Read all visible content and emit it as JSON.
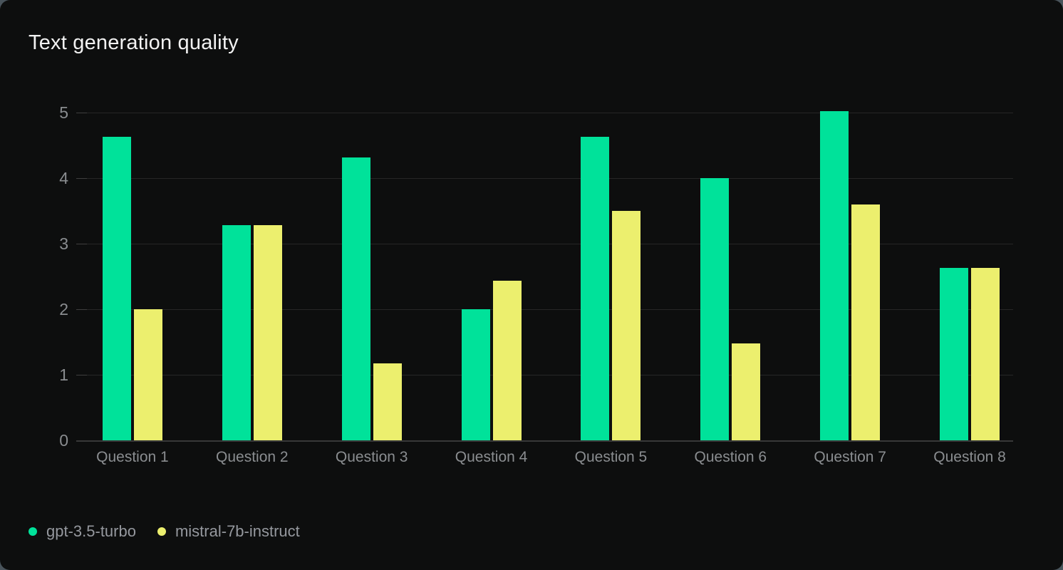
{
  "card": {
    "title": "Text generation quality"
  },
  "colors": {
    "page_background": "#49545b",
    "card_background": "#0d0e0e",
    "title_text": "#f2f2f2",
    "axis_text": "#8a8d90",
    "legend_text": "#95989e",
    "gridline": "#262626",
    "series_green": "#00e29a",
    "series_yellow": "#ecef6e"
  },
  "chart_data": {
    "type": "bar",
    "title": "Text generation quality",
    "categories": [
      "Question 1",
      "Question 2",
      "Question 3",
      "Question 4",
      "Question 5",
      "Question 6",
      "Question 7",
      "Question 8"
    ],
    "series": [
      {
        "name": "gpt-3.5-turbo",
        "color": "#00e29a",
        "values": [
          4.63,
          3.28,
          4.32,
          2.0,
          4.63,
          4.0,
          5.02,
          2.63
        ]
      },
      {
        "name": "mistral-7b-instruct",
        "color": "#ecef6e",
        "values": [
          2.0,
          3.28,
          1.17,
          2.43,
          3.5,
          1.48,
          3.6,
          2.63
        ]
      }
    ],
    "xlabel": "",
    "ylabel": "",
    "ylim": [
      0,
      5
    ],
    "yticks": [
      0,
      1,
      2,
      3,
      4,
      5
    ],
    "grid": true,
    "legend_position": "bottom-left"
  }
}
